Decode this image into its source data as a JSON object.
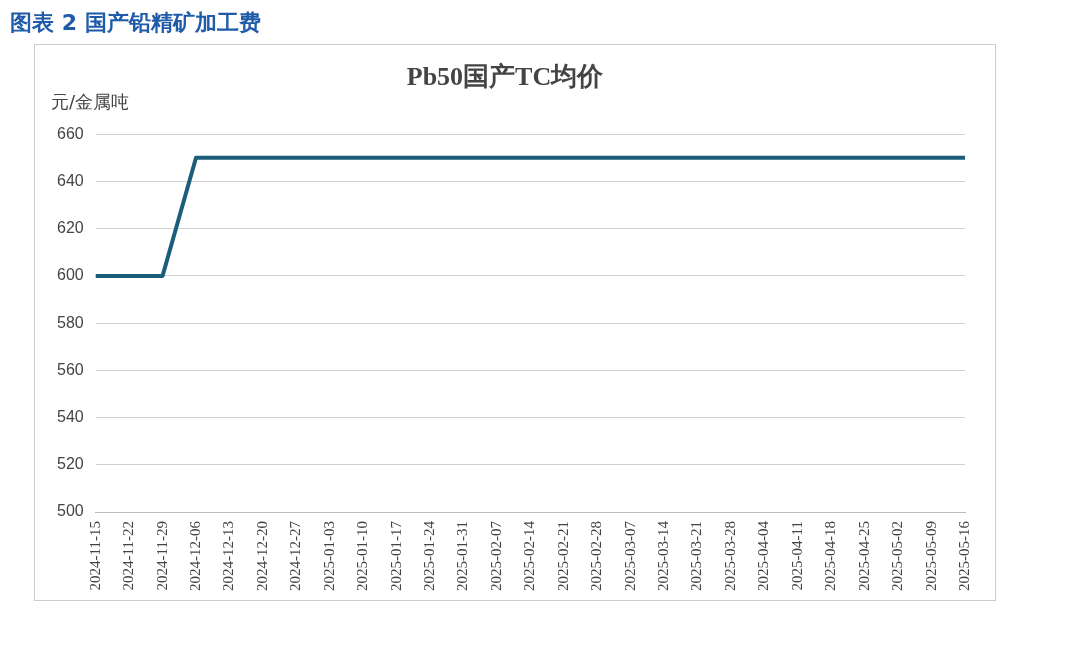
{
  "chart_data": {
    "type": "line",
    "title": "Pb50国产TC均价",
    "subtitle": "图表 2 国产铅精矿加工费",
    "ylabel": "元/金属吨",
    "categories": [
      "2024-11-15",
      "2024-11-22",
      "2024-11-29",
      "2024-12-06",
      "2024-12-13",
      "2024-12-20",
      "2024-12-27",
      "2025-01-03",
      "2025-01-10",
      "2025-01-17",
      "2025-01-24",
      "2025-01-31",
      "2025-02-07",
      "2025-02-14",
      "2025-02-21",
      "2025-02-28",
      "2025-03-07",
      "2025-03-14",
      "2025-03-21",
      "2025-03-28",
      "2025-04-04",
      "2025-04-11",
      "2025-04-18",
      "2025-04-25",
      "2025-05-02",
      "2025-05-09",
      "2025-05-16"
    ],
    "series": [
      {
        "color": "#1b5e7b",
        "values": [
          600,
          600,
          600,
          650,
          650,
          650,
          650,
          650,
          650,
          650,
          650,
          650,
          650,
          650,
          650,
          650,
          650,
          650,
          650,
          650,
          650,
          650,
          650,
          650,
          650,
          650,
          650
        ]
      }
    ],
    "ylim": [
      500,
      660
    ],
    "yticks": [
      500,
      520,
      540,
      560,
      580,
      600,
      620,
      640,
      660
    ],
    "grid": "y",
    "legend": false,
    "marker": "none",
    "line_style": "solid"
  }
}
